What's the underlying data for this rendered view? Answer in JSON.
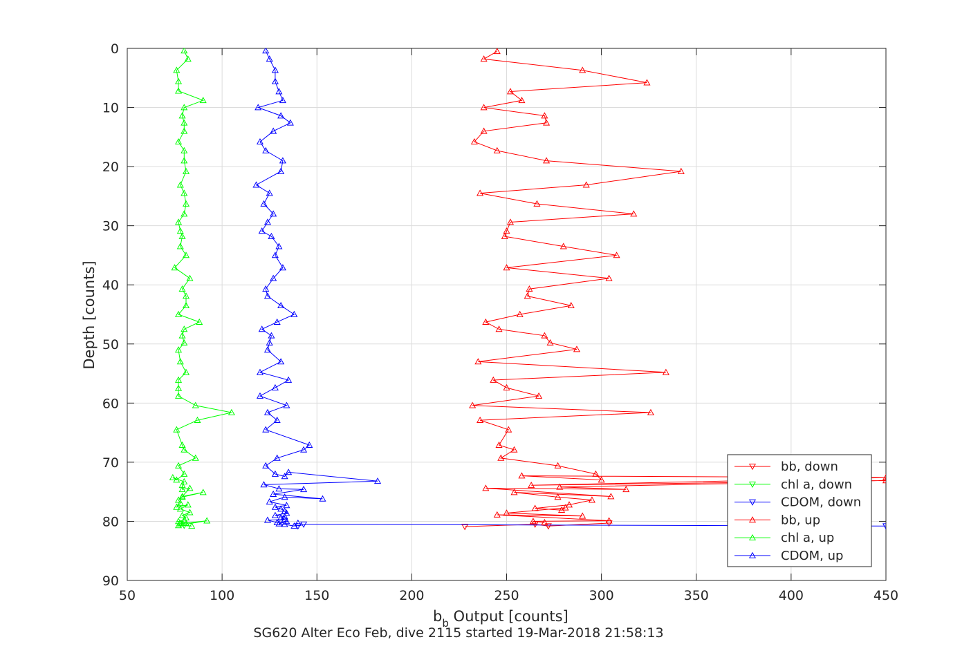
{
  "chart_data": {
    "type": "line",
    "xlabel_main": "b",
    "xlabel_sub": "b",
    "xlabel_rest": " Output [counts]",
    "ylabel": "Depth [counts]",
    "subtitle": "SG620 Alter Eco Feb, dive 2115 started 19-Mar-2018 21:58:13",
    "xlim": [
      50,
      450
    ],
    "ylim": [
      0,
      90
    ],
    "y_reversed": true,
    "grid": true,
    "legend_position": "bottom-right",
    "xticks": [
      50,
      100,
      150,
      200,
      250,
      300,
      350,
      400,
      450
    ],
    "yticks": [
      0,
      10,
      20,
      30,
      40,
      50,
      60,
      70,
      80,
      90
    ],
    "series": [
      {
        "name": "bb, down",
        "color": "#ff0000",
        "marker": "triangle-down",
        "x": [
          228,
          265,
          272,
          304
        ],
        "y": [
          80.9,
          80.5,
          80.8,
          80.3
        ]
      },
      {
        "name": "chl a, down",
        "color": "#00ff00",
        "marker": "triangle-down",
        "x": [
          78,
          80
        ],
        "y": [
          80.4,
          80.7
        ]
      },
      {
        "name": "CDOM, down",
        "color": "#0000ff",
        "marker": "triangle-down",
        "x": [
          140,
          143,
          450
        ],
        "y": [
          80.8,
          80.5,
          80.8
        ]
      },
      {
        "name": "bb, up",
        "color": "#ff0000",
        "marker": "triangle-up",
        "x": [
          245,
          238,
          290,
          324,
          252,
          258,
          238,
          270,
          271,
          238,
          233,
          245,
          271,
          342,
          292,
          236,
          266,
          317,
          252,
          250,
          249,
          280,
          308,
          250,
          304,
          262,
          261,
          284,
          257,
          239,
          246,
          270,
          273,
          287,
          235,
          334,
          243,
          250,
          267,
          232,
          326,
          236,
          251,
          246,
          254,
          247,
          277,
          297,
          300,
          258,
          450,
          263,
          450,
          278,
          313,
          239,
          305,
          254,
          277,
          295,
          283,
          265,
          279,
          281,
          250,
          290,
          245,
          304,
          264,
          270
        ],
        "y": [
          0.5,
          1.8,
          3.7,
          5.8,
          7.3,
          8.8,
          10.0,
          11.4,
          12.6,
          14.0,
          15.8,
          17.3,
          19.0,
          20.8,
          23.1,
          24.5,
          26.3,
          28.0,
          29.4,
          30.9,
          31.8,
          33.5,
          35.0,
          37.1,
          38.9,
          40.7,
          41.9,
          43.5,
          45.0,
          46.3,
          47.5,
          48.6,
          49.8,
          50.9,
          53.0,
          54.8,
          56.1,
          57.4,
          58.8,
          60.4,
          61.6,
          62.9,
          64.5,
          67.1,
          67.9,
          69.3,
          70.6,
          72.0,
          73.0,
          72.3,
          72.6,
          73.9,
          73.1,
          74.2,
          74.6,
          74.4,
          75.8,
          75.1,
          75.9,
          76.4,
          77.2,
          77.8,
          78.1,
          77.7,
          78.6,
          79.1,
          78.9,
          79.9,
          80.0,
          80.2
        ]
      },
      {
        "name": "chl a, up",
        "color": "#00ff00",
        "marker": "triangle-up",
        "x": [
          80,
          82,
          76,
          77,
          77,
          90,
          80,
          79,
          80,
          80,
          77,
          80,
          80,
          81,
          78,
          80,
          81,
          80,
          77,
          78,
          79,
          78,
          81,
          75,
          83,
          79,
          81,
          81,
          77,
          88,
          80,
          79,
          80,
          77,
          78,
          81,
          77,
          77,
          77,
          86,
          105,
          87,
          76,
          79,
          80,
          86,
          77,
          80,
          76,
          74,
          80,
          79,
          79,
          83,
          79,
          90,
          79,
          77,
          78,
          76,
          82,
          78,
          83,
          79,
          81,
          80,
          77,
          81,
          78,
          92,
          77,
          84
        ],
        "y": [
          0.4,
          1.8,
          3.7,
          5.6,
          7.2,
          8.8,
          10.0,
          11.4,
          12.6,
          14.0,
          15.8,
          17.3,
          19.0,
          20.8,
          23.1,
          24.5,
          26.3,
          28.0,
          29.4,
          30.9,
          31.8,
          33.5,
          35.0,
          37.1,
          38.9,
          40.7,
          41.9,
          43.5,
          45.0,
          46.3,
          47.5,
          48.6,
          49.8,
          51.0,
          53.0,
          54.8,
          56.1,
          57.5,
          58.8,
          60.4,
          61.6,
          62.9,
          64.5,
          67.1,
          67.9,
          69.3,
          70.6,
          72.0,
          73.0,
          72.6,
          73.3,
          73.9,
          74.6,
          74.4,
          75.8,
          75.1,
          75.9,
          76.4,
          76.9,
          77.6,
          77.2,
          77.9,
          78.5,
          79.0,
          79.4,
          79.8,
          80.0,
          80.3,
          80.4,
          79.9,
          80.7,
          80.8
        ]
      },
      {
        "name": "CDOM, up",
        "color": "#0000ff",
        "marker": "triangle-up",
        "x": [
          123,
          125,
          128,
          128,
          130,
          132,
          119,
          131,
          136,
          127,
          120,
          123,
          132,
          131,
          118,
          125,
          122,
          127,
          124,
          121,
          126,
          130,
          128,
          132,
          127,
          123,
          124,
          131,
          138,
          129,
          121,
          126,
          125,
          124,
          131,
          120,
          135,
          128,
          120,
          134,
          124,
          129,
          123,
          146,
          143,
          129,
          123,
          128,
          133,
          135,
          182,
          122,
          130,
          143,
          127,
          153,
          133,
          125,
          134,
          128,
          131,
          133,
          134,
          128,
          133,
          131,
          133,
          124,
          129,
          134,
          130,
          133,
          138,
          140
        ],
        "y": [
          0.4,
          1.8,
          3.7,
          5.6,
          7.3,
          8.8,
          10.0,
          11.4,
          12.6,
          14.0,
          15.8,
          17.3,
          19.0,
          20.8,
          23.1,
          24.5,
          26.3,
          28.0,
          29.4,
          30.9,
          31.8,
          33.5,
          35.0,
          37.1,
          38.9,
          40.7,
          41.9,
          43.5,
          45.0,
          46.3,
          47.5,
          48.6,
          49.8,
          51.0,
          53.0,
          54.8,
          56.1,
          57.4,
          58.8,
          60.4,
          61.6,
          62.9,
          64.5,
          67.1,
          67.9,
          69.3,
          70.6,
          72.0,
          72.4,
          71.7,
          73.2,
          73.8,
          74.5,
          74.6,
          75.4,
          76.2,
          75.9,
          76.7,
          77.3,
          77.6,
          77.9,
          78.3,
          78.6,
          79.0,
          79.2,
          79.4,
          79.7,
          79.8,
          80.2,
          80.0,
          80.4,
          80.5,
          80.8,
          80.3
        ]
      }
    ]
  }
}
